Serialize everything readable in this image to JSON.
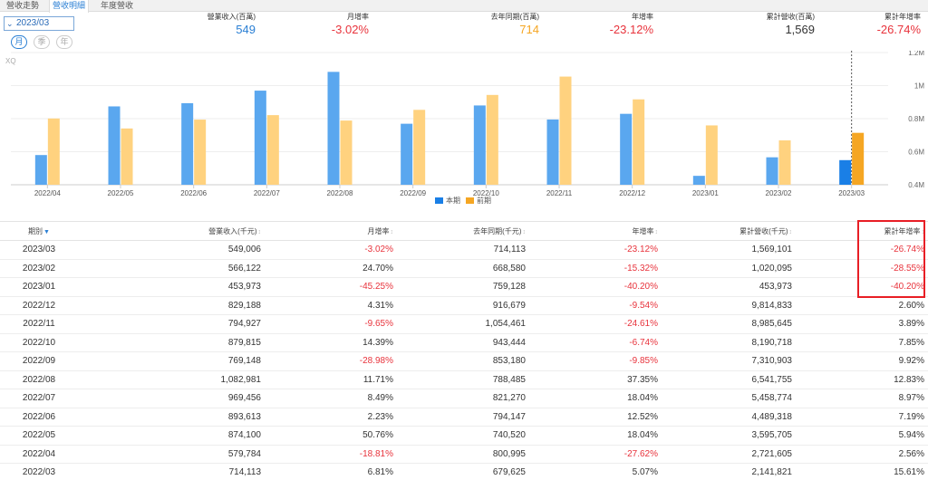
{
  "tabs": [
    {
      "label": "營收走勢",
      "active": false
    },
    {
      "label": "營收明細",
      "active": true
    },
    {
      "label": "年度營收",
      "active": false
    }
  ],
  "period": {
    "value": "2023/03"
  },
  "freq_buttons": [
    {
      "label": "月",
      "active": true
    },
    {
      "label": "季",
      "active": false
    },
    {
      "label": "年",
      "active": false
    }
  ],
  "summary": [
    {
      "label": "營業收入(百萬)",
      "value": "549",
      "color": "#2a7fd4"
    },
    {
      "label": "月增率",
      "value": "-3.02%",
      "color": "#e8333c"
    },
    {
      "label": "去年同期(百萬)",
      "value": "714",
      "color": "#f5a623"
    },
    {
      "label": "年增率",
      "value": "-23.12%",
      "color": "#e8333c"
    },
    {
      "label": "累計營收(百萬)",
      "value": "1,569",
      "color": "#333333"
    },
    {
      "label": "累計年增率",
      "value": "-26.74%",
      "color": "#e8333c"
    }
  ],
  "chart_watermark": "XQ",
  "chart_data": {
    "type": "bar",
    "categories": [
      "2022/04",
      "2022/05",
      "2022/06",
      "2022/07",
      "2022/08",
      "2022/09",
      "2022/10",
      "2022/11",
      "2022/12",
      "2023/01",
      "2023/02",
      "2023/03"
    ],
    "series": [
      {
        "name": "本期",
        "color": "#5aa7ef",
        "highlight_color": "#1a7fe6",
        "values": [
          579784,
          874100,
          893613,
          969456,
          1082981,
          769148,
          879815,
          794927,
          829188,
          453973,
          566122,
          549006
        ]
      },
      {
        "name": "前期",
        "color": "#ffd27f",
        "highlight_color": "#f5a623",
        "values": [
          800995,
          740520,
          794147,
          821270,
          788485,
          853180,
          943444,
          1054461,
          916679,
          759128,
          668580,
          714113
        ]
      }
    ],
    "y_ticks": [
      "0.4M",
      "0.6M",
      "0.8M",
      "1M",
      "1.2M"
    ],
    "ylim": [
      400000,
      1200000
    ],
    "highlight_index": 11,
    "legend_position": "bottom-center",
    "grid": true
  },
  "table": {
    "headers": [
      "期別",
      "營業收入(千元)",
      "月增率",
      "去年同期(千元)",
      "年增率",
      "累計營收(千元)",
      "累計年增率"
    ],
    "rows": [
      [
        "2023/03",
        "549,006",
        "-3.02%",
        "714,113",
        "-23.12%",
        "1,569,101",
        "-26.74%"
      ],
      [
        "2023/02",
        "566,122",
        "24.70%",
        "668,580",
        "-15.32%",
        "1,020,095",
        "-28.55%"
      ],
      [
        "2023/01",
        "453,973",
        "-45.25%",
        "759,128",
        "-40.20%",
        "453,973",
        "-40.20%"
      ],
      [
        "2022/12",
        "829,188",
        "4.31%",
        "916,679",
        "-9.54%",
        "9,814,833",
        "2.60%"
      ],
      [
        "2022/11",
        "794,927",
        "-9.65%",
        "1,054,461",
        "-24.61%",
        "8,985,645",
        "3.89%"
      ],
      [
        "2022/10",
        "879,815",
        "14.39%",
        "943,444",
        "-6.74%",
        "8,190,718",
        "7.85%"
      ],
      [
        "2022/09",
        "769,148",
        "-28.98%",
        "853,180",
        "-9.85%",
        "7,310,903",
        "9.92%"
      ],
      [
        "2022/08",
        "1,082,981",
        "11.71%",
        "788,485",
        "37.35%",
        "6,541,755",
        "12.83%"
      ],
      [
        "2022/07",
        "969,456",
        "8.49%",
        "821,270",
        "18.04%",
        "5,458,774",
        "8.97%"
      ],
      [
        "2022/06",
        "893,613",
        "2.23%",
        "794,147",
        "12.52%",
        "4,489,318",
        "7.19%"
      ],
      [
        "2022/05",
        "874,100",
        "50.76%",
        "740,520",
        "18.04%",
        "3,595,705",
        "5.94%"
      ],
      [
        "2022/04",
        "579,784",
        "-18.81%",
        "800,995",
        "-27.62%",
        "2,721,605",
        "2.56%"
      ],
      [
        "2022/03",
        "714,113",
        "6.81%",
        "679,625",
        "5.07%",
        "2,141,821",
        "15.61%"
      ]
    ]
  }
}
